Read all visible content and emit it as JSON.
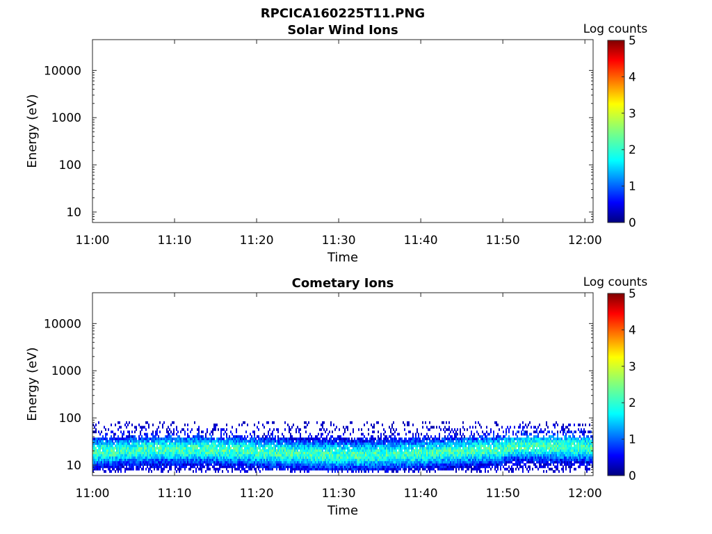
{
  "figure": {
    "title": "RPCICA160225T11.PNG"
  },
  "colors": {
    "colormap": [
      "#00007f",
      "#0000ff",
      "#007fff",
      "#00ffff",
      "#7fff7f",
      "#ffff00",
      "#ff7f00",
      "#ff0000",
      "#7f0000"
    ],
    "axis": "#262626"
  },
  "chart_data": [
    {
      "type": "heatmap",
      "title": "Solar Wind Ions",
      "xlabel": "Time",
      "ylabel": "Energy (eV)",
      "y_scale": "log",
      "ylim": [
        6,
        45000
      ],
      "y_ticks": [
        10,
        100,
        1000,
        10000
      ],
      "y_tick_labels": [
        "10",
        "100",
        "1000",
        "10000"
      ],
      "x_ticks": [
        "11:00",
        "11:10",
        "11:20",
        "11:30",
        "11:40",
        "11:50",
        "12:00"
      ],
      "xlim": [
        "11:00",
        "12:01"
      ],
      "colorbar": {
        "label": "Log counts",
        "range": [
          0,
          5
        ],
        "ticks": [
          "0",
          "1",
          "2",
          "3",
          "4",
          "5"
        ]
      },
      "data": "empty (no counts)"
    },
    {
      "type": "heatmap",
      "title": "Cometary Ions",
      "xlabel": "Time",
      "ylabel": "Energy (eV)",
      "y_scale": "log",
      "ylim": [
        6,
        45000
      ],
      "y_ticks": [
        10,
        100,
        1000,
        10000
      ],
      "y_tick_labels": [
        "10",
        "100",
        "1000",
        "10000"
      ],
      "x_ticks": [
        "11:00",
        "11:10",
        "11:20",
        "11:30",
        "11:40",
        "11:50",
        "12:00"
      ],
      "xlim": [
        "11:00",
        "12:01"
      ],
      "colorbar": {
        "label": "Log counts",
        "range": [
          0,
          5
        ],
        "ticks": [
          "0",
          "1",
          "2",
          "3",
          "4",
          "5"
        ]
      },
      "data": {
        "energy_band_ev": [
          7,
          85
        ],
        "peak_energy_ev": 18,
        "peak_log_counts": 2.2,
        "description_points": [
          {
            "energy": 85,
            "log_counts": 0.8
          },
          {
            "energy": 40,
            "log_counts": 1.0
          },
          {
            "energy": 25,
            "log_counts": 1.6
          },
          {
            "energy": 18,
            "log_counts": 2.2
          },
          {
            "energy": 13,
            "log_counts": 1.7
          },
          {
            "energy": 10,
            "log_counts": 1.0
          },
          {
            "energy": 7,
            "log_counts": 0.6
          }
        ]
      }
    }
  ]
}
